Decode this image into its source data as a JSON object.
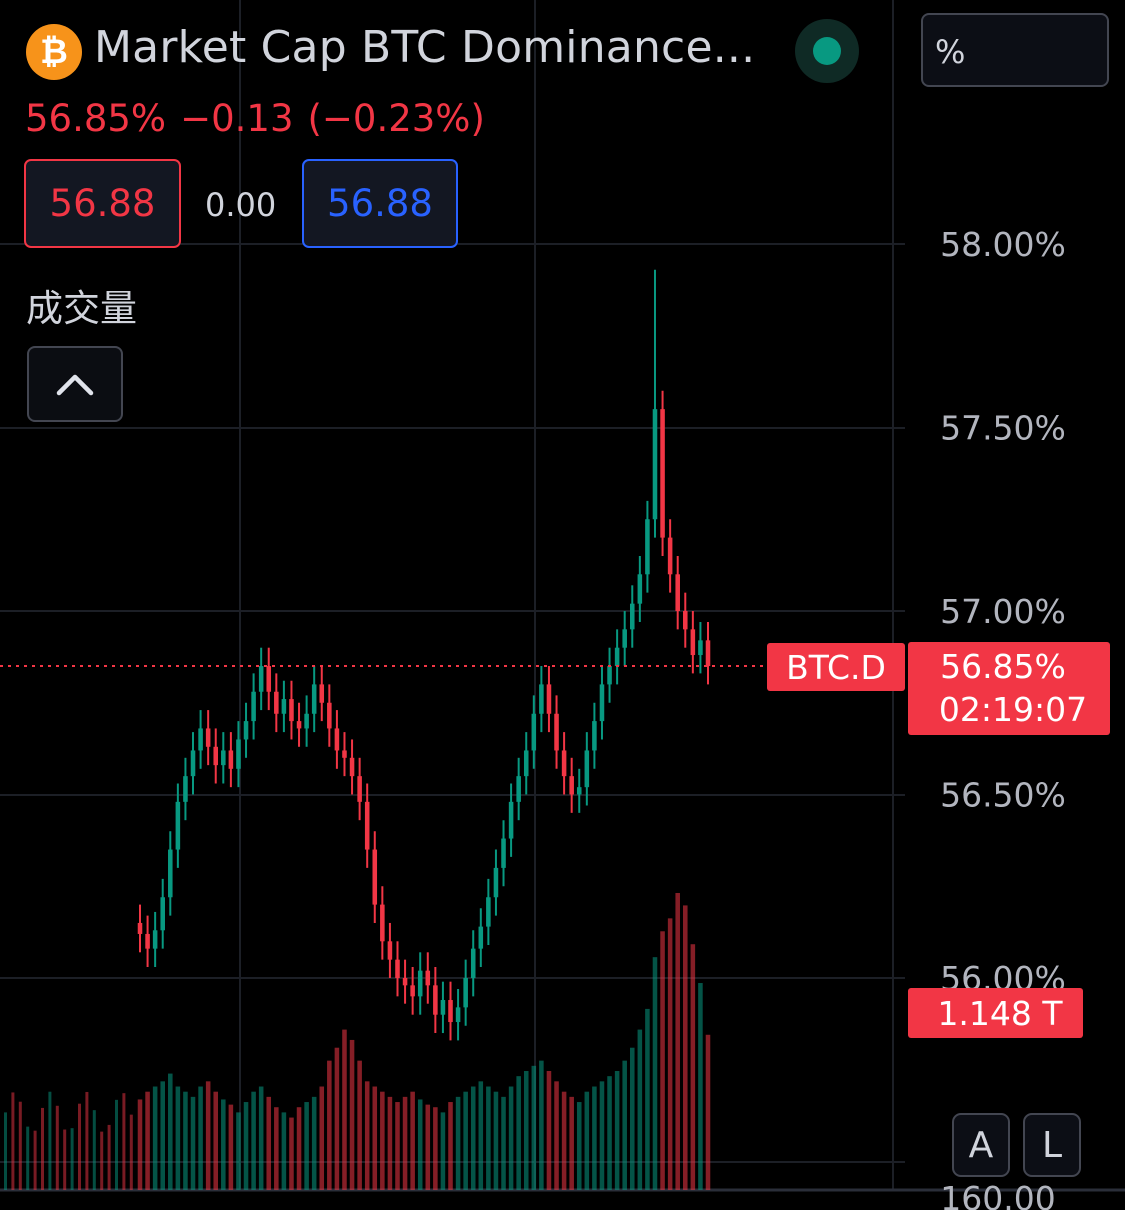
{
  "header": {
    "coin_symbol": "₿",
    "title": "Market Cap BTC Dominance...",
    "last": "56.85%",
    "change": "−0.13",
    "change_pct": "(−0.23%)",
    "sell_price": "56.88",
    "spread": "0.00",
    "buy_price": "56.88",
    "unit_selector": "%",
    "volume_label": "成交量"
  },
  "controls": {
    "auto_label": "A",
    "log_label": "L"
  },
  "colors": {
    "up": "#089981",
    "down": "#f23645",
    "buy": "#2962ff",
    "text": "#d1d4dc",
    "grid": "#1c1f26"
  },
  "chart_data": {
    "type": "candlestick",
    "symbol": "BTC.D",
    "y_ticks": [
      "58.00%",
      "57.50%",
      "57.00%",
      "56.50%",
      "56.00%"
    ],
    "y_range": [
      55.5,
      58.3
    ],
    "last_price_label": "56.85%",
    "countdown": "02:19:07",
    "symbol_label": "BTC.D",
    "volume_axis_label": "1.148 T",
    "volume_tick_partial": "160.00",
    "closes": [
      56.12,
      56.08,
      56.13,
      56.22,
      56.35,
      56.48,
      56.55,
      56.62,
      56.68,
      56.63,
      56.58,
      56.62,
      56.57,
      56.65,
      56.7,
      56.78,
      56.85,
      56.78,
      56.72,
      56.76,
      56.7,
      56.68,
      56.72,
      56.8,
      56.75,
      56.68,
      56.62,
      56.6,
      56.55,
      56.48,
      56.35,
      56.2,
      56.1,
      56.05,
      56.0,
      55.98,
      55.95,
      56.02,
      55.98,
      55.9,
      55.94,
      55.88,
      55.92,
      56.0,
      56.08,
      56.14,
      56.22,
      56.3,
      56.38,
      56.48,
      56.55,
      56.62,
      56.72,
      56.8,
      56.72,
      56.62,
      56.55,
      56.5,
      56.52,
      56.62,
      56.7,
      56.8,
      56.85,
      56.9,
      56.95,
      57.02,
      57.1,
      57.25,
      57.55,
      57.2,
      57.1,
      57.0,
      56.95,
      56.88,
      56.92,
      56.85
    ],
    "volumes": [
      0.35,
      0.38,
      0.4,
      0.42,
      0.45,
      0.4,
      0.38,
      0.36,
      0.4,
      0.42,
      0.38,
      0.35,
      0.33,
      0.3,
      0.34,
      0.38,
      0.4,
      0.36,
      0.32,
      0.3,
      0.28,
      0.32,
      0.34,
      0.36,
      0.4,
      0.5,
      0.55,
      0.62,
      0.58,
      0.5,
      0.42,
      0.4,
      0.38,
      0.36,
      0.34,
      0.36,
      0.38,
      0.35,
      0.33,
      0.32,
      0.3,
      0.34,
      0.36,
      0.38,
      0.4,
      0.42,
      0.4,
      0.38,
      0.36,
      0.4,
      0.44,
      0.46,
      0.48,
      0.5,
      0.46,
      0.42,
      0.38,
      0.36,
      0.34,
      0.38,
      0.4,
      0.42,
      0.44,
      0.46,
      0.5,
      0.55,
      0.62,
      0.7,
      0.9,
      1.0,
      1.05,
      1.148,
      1.1,
      0.95,
      0.8,
      0.6
    ]
  }
}
